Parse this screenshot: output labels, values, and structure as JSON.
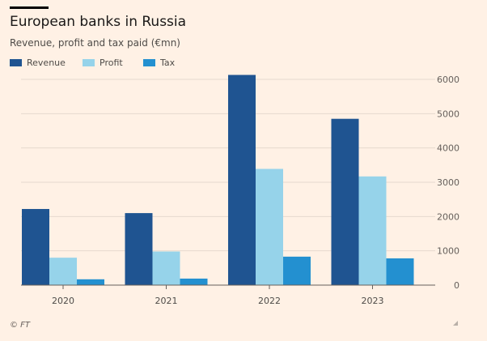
{
  "header": {
    "title": "European banks in Russia",
    "subtitle": "Revenue, profit and tax paid (€mn)"
  },
  "legend": [
    {
      "label": "Revenue",
      "color": "#1f5491"
    },
    {
      "label": "Profit",
      "color": "#96d3ea"
    },
    {
      "label": "Tax",
      "color": "#2390d0"
    }
  ],
  "footer": {
    "source": "© FT"
  },
  "chart_data": {
    "type": "bar",
    "title": "European banks in Russia",
    "subtitle": "Revenue, profit and tax paid (€mn)",
    "xlabel": "",
    "ylabel": "",
    "categories": [
      "2020",
      "2021",
      "2022",
      "2023"
    ],
    "series": [
      {
        "name": "Revenue",
        "color": "#1f5491",
        "values": [
          2220,
          2100,
          6130,
          4850
        ]
      },
      {
        "name": "Profit",
        "color": "#96d3ea",
        "values": [
          800,
          980,
          3390,
          3170
        ]
      },
      {
        "name": "Tax",
        "color": "#2390d0",
        "values": [
          170,
          190,
          830,
          780
        ]
      }
    ],
    "ylim": [
      0,
      6000
    ],
    "yticks": [
      0,
      1000,
      2000,
      3000,
      4000,
      5000,
      6000
    ],
    "ytick_labels": [
      "0",
      "1000",
      "2000",
      "3000",
      "4000",
      "5000",
      "6000"
    ],
    "y_axis_position": "right",
    "grid": true,
    "legend_position": "top-left"
  }
}
